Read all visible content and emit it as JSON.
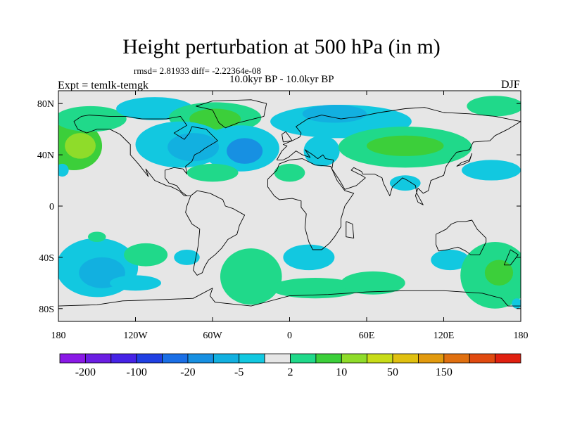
{
  "title": "Height perturbation at 500 hPa (in m)",
  "stats": "rmsd= 2.81933 diff= -2.22364e-08",
  "period": "10.0kyr BP - 10.0kyr BP",
  "experiment": "Expt = temlk-temgk",
  "season": "DJF",
  "map": {
    "lon_range": [
      -180,
      180
    ],
    "lat_range": [
      -90,
      90
    ],
    "projection": "cylindrical-equidistant",
    "background_color": "#e6e6e6",
    "lat_ticks": [
      {
        "lat": 80,
        "label": "80N"
      },
      {
        "lat": 40,
        "label": "40N"
      },
      {
        "lat": 0,
        "label": "0"
      },
      {
        "lat": -40,
        "label": "40S"
      },
      {
        "lat": -80,
        "label": "80S"
      }
    ],
    "lon_ticks": [
      {
        "lon": -180,
        "label": "180"
      },
      {
        "lon": -120,
        "label": "120W"
      },
      {
        "lon": -60,
        "label": "60W"
      },
      {
        "lon": 0,
        "label": "0"
      },
      {
        "lon": 60,
        "label": "60E"
      },
      {
        "lon": 120,
        "label": "120E"
      },
      {
        "lon": 180,
        "label": "180"
      }
    ]
  },
  "colorbar": {
    "colors": [
      "#8a19e6",
      "#6b1ee3",
      "#4623e6",
      "#2040e3",
      "#1a6fe6",
      "#1790e2",
      "#12b0e0",
      "#12c8e0",
      "#e6e6e6",
      "#20d98a",
      "#3ccf3a",
      "#8fdc2a",
      "#c8dc18",
      "#e0c010",
      "#e29a0e",
      "#e07010",
      "#e04a10",
      "#e02010"
    ],
    "tick_labels": [
      "-200",
      "-100",
      "-20",
      "-5",
      "2",
      "10",
      "50",
      "150"
    ],
    "tick_boundary_index": [
      1,
      3,
      5,
      7,
      9,
      11,
      13,
      15
    ]
  },
  "anomalies": [
    {
      "lon": -168,
      "lat": 47,
      "rx": 22,
      "ry": 19,
      "level": "pos_mid"
    },
    {
      "lon": -163,
      "lat": 47,
      "rx": 12,
      "ry": 10,
      "level": "pos_high"
    },
    {
      "lon": -155,
      "lat": 68,
      "rx": 28,
      "ry": 10,
      "level": "pos_low"
    },
    {
      "lon": -105,
      "lat": 76,
      "rx": 30,
      "ry": 9,
      "level": "neg_low"
    },
    {
      "lon": -58,
      "lat": 69,
      "rx": 36,
      "ry": 12,
      "level": "pos_low"
    },
    {
      "lon": -58,
      "lat": 68,
      "rx": 20,
      "ry": 8,
      "level": "pos_mid"
    },
    {
      "lon": -85,
      "lat": 48,
      "rx": 35,
      "ry": 18,
      "level": "neg_low"
    },
    {
      "lon": -38,
      "lat": 45,
      "rx": 30,
      "ry": 18,
      "level": "neg_low"
    },
    {
      "lon": -75,
      "lat": 46,
      "rx": 20,
      "ry": 11,
      "level": "neg_mid"
    },
    {
      "lon": -35,
      "lat": 43,
      "rx": 14,
      "ry": 10,
      "level": "neg_high"
    },
    {
      "lon": -60,
      "lat": 26,
      "rx": 20,
      "ry": 7,
      "level": "pos_low"
    },
    {
      "lon": 0,
      "lat": 26,
      "rx": 12,
      "ry": 7,
      "level": "pos_low"
    },
    {
      "lon": 25,
      "lat": 43,
      "rx": 14,
      "ry": 12,
      "level": "neg_low"
    },
    {
      "lon": 40,
      "lat": 66,
      "rx": 55,
      "ry": 13,
      "level": "neg_low"
    },
    {
      "lon": 35,
      "lat": 72,
      "rx": 25,
      "ry": 7,
      "level": "neg_mid"
    },
    {
      "lon": 90,
      "lat": 46,
      "rx": 52,
      "ry": 16,
      "level": "pos_low"
    },
    {
      "lon": 90,
      "lat": 47,
      "rx": 30,
      "ry": 8,
      "level": "pos_mid"
    },
    {
      "lon": 160,
      "lat": 78,
      "rx": 22,
      "ry": 8,
      "level": "pos_low"
    },
    {
      "lon": 157,
      "lat": 28,
      "rx": 23,
      "ry": 8,
      "level": "neg_low"
    },
    {
      "lon": 90,
      "lat": 18,
      "rx": 12,
      "ry": 6,
      "level": "neg_low"
    },
    {
      "lon": -177,
      "lat": 28,
      "rx": 5,
      "ry": 5,
      "level": "neg_low"
    },
    {
      "lon": -150,
      "lat": -48,
      "rx": 32,
      "ry": 23,
      "level": "neg_low"
    },
    {
      "lon": -146,
      "lat": -52,
      "rx": 18,
      "ry": 12,
      "level": "neg_mid"
    },
    {
      "lon": -120,
      "lat": -60,
      "rx": 20,
      "ry": 6,
      "level": "neg_low"
    },
    {
      "lon": -112,
      "lat": -38,
      "rx": 17,
      "ry": 9,
      "level": "pos_low"
    },
    {
      "lon": -150,
      "lat": -24,
      "rx": 7,
      "ry": 4,
      "level": "pos_low"
    },
    {
      "lon": -80,
      "lat": -40,
      "rx": 10,
      "ry": 6,
      "level": "neg_low"
    },
    {
      "lon": -30,
      "lat": -55,
      "rx": 24,
      "ry": 22,
      "level": "pos_low"
    },
    {
      "lon": 20,
      "lat": -64,
      "rx": 35,
      "ry": 8,
      "level": "pos_low"
    },
    {
      "lon": 15,
      "lat": -40,
      "rx": 20,
      "ry": 10,
      "level": "neg_low"
    },
    {
      "lon": 65,
      "lat": -60,
      "rx": 25,
      "ry": 9,
      "level": "pos_low"
    },
    {
      "lon": 125,
      "lat": -42,
      "rx": 15,
      "ry": 8,
      "level": "neg_low"
    },
    {
      "lon": 160,
      "lat": -54,
      "rx": 27,
      "ry": 26,
      "level": "pos_low"
    },
    {
      "lon": 163,
      "lat": -52,
      "rx": 11,
      "ry": 10,
      "level": "pos_mid"
    },
    {
      "lon": 177,
      "lat": -76,
      "rx": 4,
      "ry": 4,
      "level": "neg_low"
    }
  ],
  "level_colors": {
    "pos_low": "#20d98a",
    "pos_mid": "#3ccf3a",
    "pos_high": "#8fdc2a",
    "neg_low": "#12c8e0",
    "neg_mid": "#12b0e0",
    "neg_high": "#1790e2"
  },
  "coastlines": [
    [
      [
        -168,
        66
      ],
      [
        -162,
        70
      ],
      [
        -156,
        71
      ],
      [
        -140,
        70
      ],
      [
        -128,
        70
      ],
      [
        -115,
        68
      ],
      [
        -96,
        68
      ],
      [
        -85,
        70
      ],
      [
        -80,
        63
      ],
      [
        -90,
        57
      ],
      [
        -82,
        52
      ],
      [
        -78,
        57
      ],
      [
        -76,
        62
      ],
      [
        -65,
        60
      ],
      [
        -60,
        55
      ],
      [
        -56,
        51
      ],
      [
        -66,
        45
      ],
      [
        -70,
        42
      ],
      [
        -74,
        40
      ],
      [
        -76,
        35
      ],
      [
        -81,
        31
      ],
      [
        -80,
        25
      ],
      [
        -83,
        29
      ],
      [
        -90,
        30
      ],
      [
        -97,
        28
      ],
      [
        -97,
        22
      ],
      [
        -94,
        18
      ],
      [
        -88,
        16
      ],
      [
        -84,
        11
      ],
      [
        -80,
        8
      ],
      [
        -77,
        8
      ],
      [
        -82,
        8
      ],
      [
        -86,
        12
      ],
      [
        -92,
        15
      ],
      [
        -96,
        16
      ],
      [
        -105,
        20
      ],
      [
        -112,
        29
      ],
      [
        -110,
        23
      ],
      [
        -117,
        32
      ],
      [
        -124,
        40
      ],
      [
        -124,
        48
      ],
      [
        -132,
        56
      ],
      [
        -140,
        60
      ],
      [
        -150,
        60
      ],
      [
        -158,
        57
      ],
      [
        -165,
        60
      ],
      [
        -168,
        66
      ]
    ],
    [
      [
        -77,
        8
      ],
      [
        -72,
        12
      ],
      [
        -62,
        10
      ],
      [
        -52,
        5
      ],
      [
        -50,
        0
      ],
      [
        -44,
        -2
      ],
      [
        -35,
        -7
      ],
      [
        -39,
        -15
      ],
      [
        -41,
        -22
      ],
      [
        -48,
        -26
      ],
      [
        -53,
        -33
      ],
      [
        -58,
        -38
      ],
      [
        -63,
        -42
      ],
      [
        -66,
        -47
      ],
      [
        -68,
        -52
      ],
      [
        -72,
        -54
      ],
      [
        -75,
        -50
      ],
      [
        -73,
        -40
      ],
      [
        -71,
        -30
      ],
      [
        -70,
        -18
      ],
      [
        -76,
        -14
      ],
      [
        -81,
        -5
      ],
      [
        -80,
        0
      ],
      [
        -77,
        8
      ]
    ],
    [
      [
        -73,
        78
      ],
      [
        -60,
        82
      ],
      [
        -30,
        83
      ],
      [
        -18,
        80
      ],
      [
        -20,
        70
      ],
      [
        -40,
        65
      ],
      [
        -50,
        61
      ],
      [
        -55,
        65
      ],
      [
        -60,
        75
      ],
      [
        -73,
        78
      ]
    ],
    [
      [
        -10,
        36
      ],
      [
        -6,
        43
      ],
      [
        -2,
        47
      ],
      [
        -5,
        48
      ],
      [
        2,
        51
      ],
      [
        8,
        54
      ],
      [
        9,
        57
      ],
      [
        5,
        62
      ],
      [
        14,
        68
      ],
      [
        25,
        71
      ],
      [
        40,
        68
      ],
      [
        55,
        70
      ],
      [
        70,
        73
      ],
      [
        90,
        76
      ],
      [
        105,
        77
      ],
      [
        120,
        73
      ],
      [
        140,
        72
      ],
      [
        160,
        70
      ],
      [
        175,
        67
      ],
      [
        180,
        66
      ],
      [
        170,
        60
      ],
      [
        160,
        55
      ],
      [
        156,
        51
      ],
      [
        143,
        50
      ],
      [
        140,
        44
      ],
      [
        130,
        42
      ],
      [
        126,
        37
      ],
      [
        122,
        31
      ],
      [
        120,
        24
      ],
      [
        110,
        20
      ],
      [
        108,
        12
      ],
      [
        104,
        10
      ],
      [
        100,
        14
      ],
      [
        98,
        8
      ],
      [
        100,
        3
      ],
      [
        104,
        1
      ],
      [
        99,
        10
      ],
      [
        98,
        16
      ],
      [
        92,
        20
      ],
      [
        88,
        22
      ],
      [
        80,
        15
      ],
      [
        78,
        8
      ],
      [
        73,
        18
      ],
      [
        72,
        22
      ],
      [
        66,
        25
      ],
      [
        57,
        25
      ],
      [
        56,
        27
      ],
      [
        50,
        30
      ],
      [
        48,
        28
      ],
      [
        56,
        24
      ],
      [
        59,
        22
      ],
      [
        52,
        16
      ],
      [
        43,
        13
      ],
      [
        39,
        20
      ],
      [
        33,
        29
      ],
      [
        34,
        36
      ],
      [
        28,
        37
      ],
      [
        26,
        40
      ],
      [
        22,
        37
      ],
      [
        18,
        40
      ],
      [
        12,
        44
      ],
      [
        16,
        38
      ],
      [
        10,
        40
      ],
      [
        5,
        43
      ],
      [
        -1,
        38
      ],
      [
        -5,
        36
      ],
      [
        -10,
        36
      ]
    ],
    [
      [
        -17,
        21
      ],
      [
        -17,
        15
      ],
      [
        -12,
        8
      ],
      [
        -8,
        5
      ],
      [
        2,
        6
      ],
      [
        9,
        4
      ],
      [
        9,
        -1
      ],
      [
        13,
        -6
      ],
      [
        12,
        -17
      ],
      [
        15,
        -28
      ],
      [
        18,
        -34
      ],
      [
        25,
        -34
      ],
      [
        31,
        -29
      ],
      [
        35,
        -24
      ],
      [
        40,
        -16
      ],
      [
        40,
        -10
      ],
      [
        43,
        0
      ],
      [
        50,
        10
      ],
      [
        43,
        12
      ],
      [
        37,
        20
      ],
      [
        32,
        31
      ],
      [
        20,
        32
      ],
      [
        10,
        37
      ],
      [
        0,
        36
      ],
      [
        -8,
        33
      ],
      [
        -10,
        28
      ],
      [
        -17,
        21
      ]
    ],
    [
      [
        114,
        -22
      ],
      [
        114,
        -30
      ],
      [
        116,
        -35
      ],
      [
        123,
        -34
      ],
      [
        131,
        -32
      ],
      [
        137,
        -35
      ],
      [
        141,
        -38
      ],
      [
        148,
        -38
      ],
      [
        150,
        -34
      ],
      [
        153,
        -28
      ],
      [
        153,
        -25
      ],
      [
        146,
        -18
      ],
      [
        142,
        -11
      ],
      [
        137,
        -12
      ],
      [
        131,
        -12
      ],
      [
        126,
        -14
      ],
      [
        122,
        -18
      ],
      [
        114,
        -22
      ]
    ],
    [
      [
        -180,
        -78
      ],
      [
        -150,
        -77
      ],
      [
        -130,
        -74
      ],
      [
        -100,
        -73
      ],
      [
        -75,
        -72
      ],
      [
        -60,
        -64
      ],
      [
        -62,
        -70
      ],
      [
        -58,
        -75
      ],
      [
        -30,
        -78
      ],
      [
        0,
        -70
      ],
      [
        30,
        -69
      ],
      [
        60,
        -67
      ],
      [
        90,
        -66
      ],
      [
        120,
        -66
      ],
      [
        150,
        -68
      ],
      [
        165,
        -72
      ],
      [
        170,
        -78
      ],
      [
        180,
        -78
      ]
    ],
    [
      [
        -5,
        50
      ],
      [
        2,
        51
      ],
      [
        0,
        54
      ],
      [
        -3,
        58
      ],
      [
        -6,
        56
      ],
      [
        -5,
        50
      ]
    ],
    [
      [
        130,
        31
      ],
      [
        134,
        34
      ],
      [
        140,
        36
      ],
      [
        142,
        41
      ],
      [
        140,
        35
      ],
      [
        136,
        33
      ],
      [
        130,
        31
      ]
    ],
    [
      [
        44,
        -12
      ],
      [
        49,
        -14
      ],
      [
        50,
        -25
      ],
      [
        44,
        -24
      ],
      [
        44,
        -12
      ]
    ],
    [
      [
        172,
        -34
      ],
      [
        178,
        -38
      ],
      [
        172,
        -46
      ],
      [
        167,
        -46
      ],
      [
        172,
        -34
      ]
    ]
  ]
}
